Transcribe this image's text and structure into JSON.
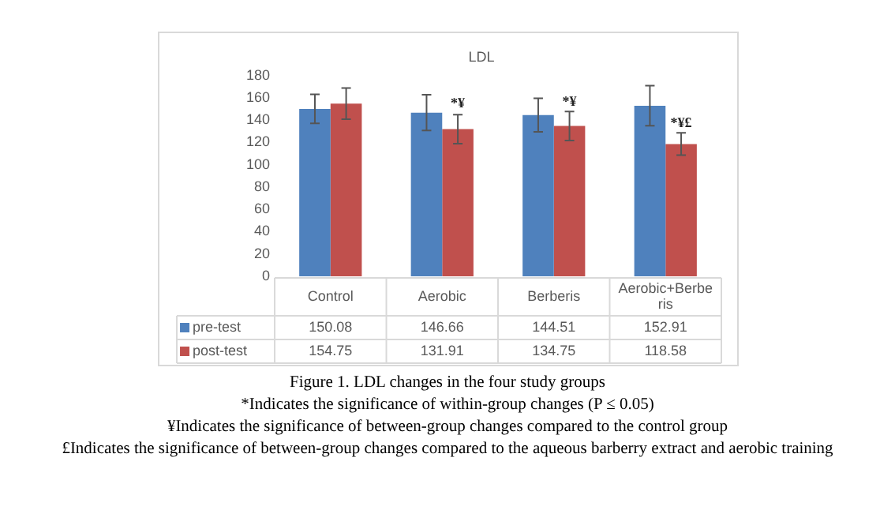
{
  "chart_data": {
    "type": "bar",
    "title": "LDL",
    "categories": [
      "Control",
      "Aerobic",
      "Berberis",
      "Aerobic+Berberis"
    ],
    "series": [
      {
        "name": "pre-test",
        "color": "#4f81bd",
        "values": [
          150.08,
          146.66,
          144.51,
          152.91
        ],
        "errors": [
          13,
          16,
          15,
          18
        ]
      },
      {
        "name": "post-test",
        "color": "#c0504d",
        "values": [
          154.75,
          131.91,
          134.75,
          118.58
        ],
        "errors": [
          14,
          13,
          13,
          10
        ]
      }
    ],
    "ylim": [
      0,
      180
    ],
    "yticks": [
      0,
      20,
      40,
      60,
      80,
      100,
      120,
      140,
      160,
      180
    ],
    "grid": false,
    "legend": "bottom",
    "data_labels": true,
    "annotations": [
      {
        "text": "*¥",
        "x": "Aerobic",
        "y": 148
      },
      {
        "text": "*¥",
        "x": "Berberis",
        "y": 150
      },
      {
        "text": "*¥£",
        "x": "Aerobic+Berberis",
        "y": 131
      },
      "Figure 1. LDL changes in the four study groups",
      "*Indicates the significance of within-group changes (P ≤ 0.05)",
      "¥Indicates the significance of between-group changes compared to the control group",
      "£Indicates the significance of between-group changes compared to the aqueous barberry extract and aerobic training"
    ]
  }
}
